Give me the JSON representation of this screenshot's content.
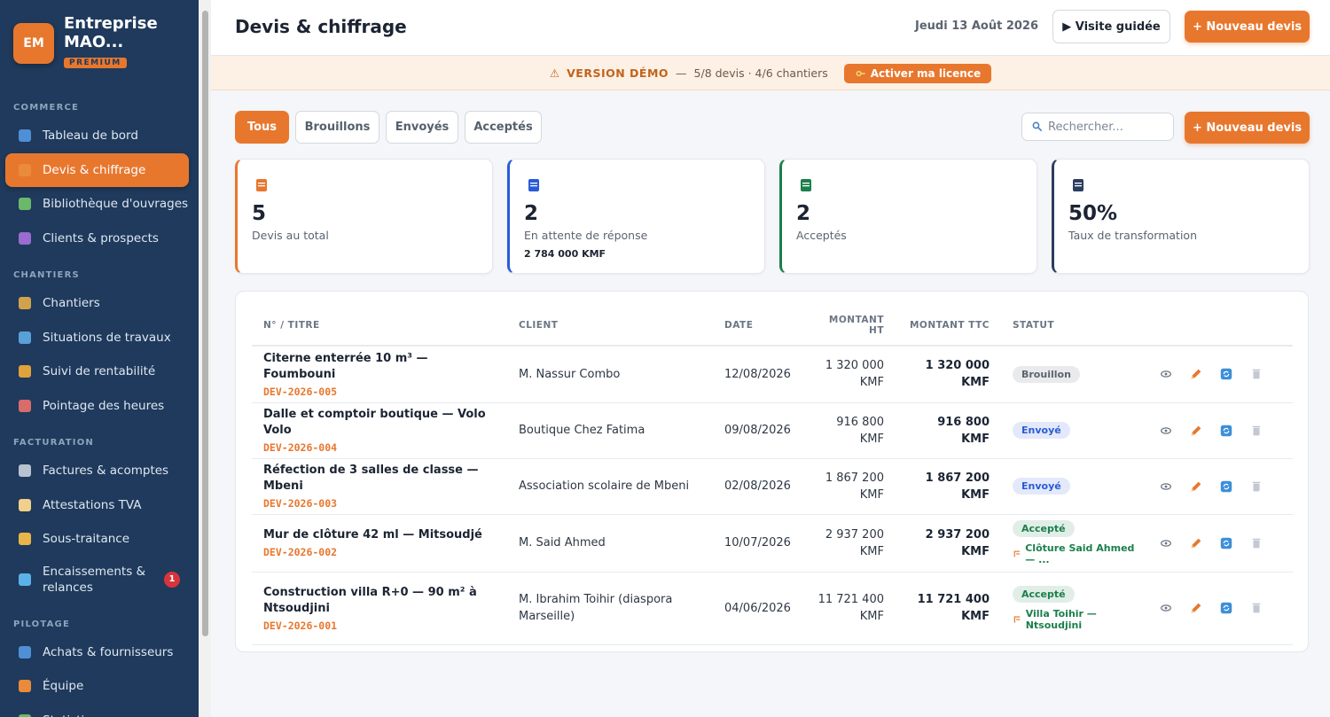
{
  "sidebar": {
    "initials": "EM",
    "brand": "Entreprise MAO...",
    "badge": "PREMIUM",
    "sections": [
      {
        "title": "COMMERCE",
        "items": [
          {
            "label": "Tableau de bord"
          },
          {
            "label": "Devis & chiffrage",
            "active": true
          },
          {
            "label": "Bibliothèque d'ouvrages"
          },
          {
            "label": "Clients & prospects"
          }
        ]
      },
      {
        "title": "CHANTIERS",
        "items": [
          {
            "label": "Chantiers"
          },
          {
            "label": "Situations de travaux"
          },
          {
            "label": "Suivi de rentabilité"
          },
          {
            "label": "Pointage des heures"
          }
        ]
      },
      {
        "title": "FACTURATION",
        "items": [
          {
            "label": "Factures & acomptes"
          },
          {
            "label": "Attestations TVA"
          },
          {
            "label": "Sous-traitance"
          },
          {
            "label": "Encaissements & relances",
            "count": "1"
          }
        ]
      },
      {
        "title": "PILOTAGE",
        "items": [
          {
            "label": "Achats & fournisseurs"
          },
          {
            "label": "Équipe"
          },
          {
            "label": "Statistiques"
          }
        ]
      }
    ]
  },
  "header": {
    "title": "Devis & chiffrage",
    "date": "Jeudi 13 Août 2026",
    "tour_button": "▶ Visite guidée",
    "new_button": "+ Nouveau devis"
  },
  "banner": {
    "warning": "⚠",
    "label": "VERSION DÉMO",
    "separator": "—",
    "info": "5/8 devis · 4/6 chantiers",
    "button": "Activer ma licence"
  },
  "toolbar": {
    "tabs": [
      "Tous",
      "Brouillons",
      "Envoyés",
      "Acceptés"
    ],
    "search_placeholder": "Rechercher...",
    "new_button": "+ Nouveau devis"
  },
  "stats": [
    {
      "value": "5",
      "label": "Devis au total",
      "color": "#e8772e"
    },
    {
      "value": "2",
      "label": "En attente de réponse",
      "sub": "2 784 000 KMF",
      "color": "#2a5bd7"
    },
    {
      "value": "2",
      "label": "Acceptés",
      "color": "#1b7f4b"
    },
    {
      "value": "50%",
      "label": "Taux de transformation",
      "color": "#2c3e60"
    }
  ],
  "table": {
    "columns": [
      "N° / TITRE",
      "CLIENT",
      "DATE",
      "MONTANT HT",
      "MONTANT TTC",
      "STATUT"
    ],
    "rows": [
      {
        "title": "Citerne enterrée 10 m³ — Foumbouni",
        "number": "DEV-2026-005",
        "client": "M. Nassur Combo",
        "date": "12/08/2026",
        "ht": "1 320 000 KMF",
        "ttc": "1 320 000 KMF",
        "status": "Brouillon",
        "status_color": "#5b6470"
      },
      {
        "title": "Dalle et comptoir boutique — Volo Volo",
        "number": "DEV-2026-004",
        "client": "Boutique Chez Fatima",
        "date": "09/08/2026",
        "ht": "916 800 KMF",
        "ttc": "916 800 KMF",
        "status": "Envoyé",
        "status_color": "#2a5bd7"
      },
      {
        "title": "Réfection de 3 salles de classe — Mbeni",
        "number": "DEV-2026-003",
        "client": "Association scolaire de Mbeni",
        "date": "02/08/2026",
        "ht": "1 867 200 KMF",
        "ttc": "1 867 200 KMF",
        "status": "Envoyé",
        "status_color": "#2a5bd7"
      },
      {
        "title": "Mur de clôture 42 ml — Mitsoudjé",
        "number": "DEV-2026-002",
        "client": "M. Said Ahmed",
        "date": "10/07/2026",
        "ht": "2 937 200 KMF",
        "ttc": "2 937 200 KMF",
        "status": "Accepté",
        "status_color": "#1b7f4b",
        "project": "Clôture Said Ahmed — ..."
      },
      {
        "title": "Construction villa R+0 — 90 m² à Ntsoudjini",
        "number": "DEV-2026-001",
        "client": "M. Ibrahim Toihir (diaspora Marseille)",
        "date": "04/06/2026",
        "ht": "11 721 400 KMF",
        "ttc": "11 721 400 KMF",
        "status": "Accepté",
        "status_color": "#1b7f4b",
        "project": "Villa Toihir — Ntsoudjini"
      }
    ]
  }
}
